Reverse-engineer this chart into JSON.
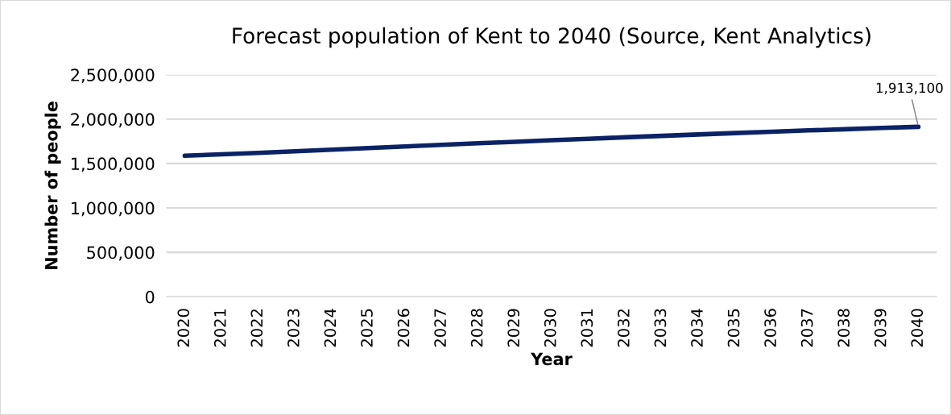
{
  "chart_data": {
    "type": "line",
    "title": "Forecast population of Kent to 2040 (Source, Kent Analytics)",
    "xlabel": "Year",
    "ylabel": "Number of people",
    "categories": [
      "2020",
      "2021",
      "2022",
      "2023",
      "2024",
      "2025",
      "2026",
      "2027",
      "2028",
      "2029",
      "2030",
      "2031",
      "2032",
      "2033",
      "2034",
      "2035",
      "2036",
      "2037",
      "2038",
      "2039",
      "2040"
    ],
    "series": [
      {
        "color": "#0b2265",
        "values": [
          1587000,
          1604000,
          1620000,
          1637000,
          1655000,
          1673000,
          1692000,
          1710000,
          1728000,
          1745000,
          1762000,
          1779000,
          1795000,
          1811000,
          1827000,
          1843000,
          1858000,
          1873000,
          1886000,
          1900000,
          1913100
        ],
        "value_labels": [
          null,
          null,
          null,
          null,
          null,
          null,
          null,
          null,
          null,
          null,
          null,
          null,
          null,
          null,
          null,
          null,
          null,
          null,
          null,
          null,
          "1,913,100"
        ]
      }
    ],
    "ylim": [
      0,
      2500000
    ],
    "yticks": [
      {
        "value": 0,
        "label": "0"
      },
      {
        "value": 500000,
        "label": "500,000"
      },
      {
        "value": 1000000,
        "label": "1,000,000"
      },
      {
        "value": 1500000,
        "label": "1,500,000"
      },
      {
        "value": 2000000,
        "label": "2,000,000"
      },
      {
        "value": 2500000,
        "label": "2,500,000"
      }
    ],
    "grid": "y",
    "legend": false,
    "marker": "none",
    "line_style": "solid"
  }
}
